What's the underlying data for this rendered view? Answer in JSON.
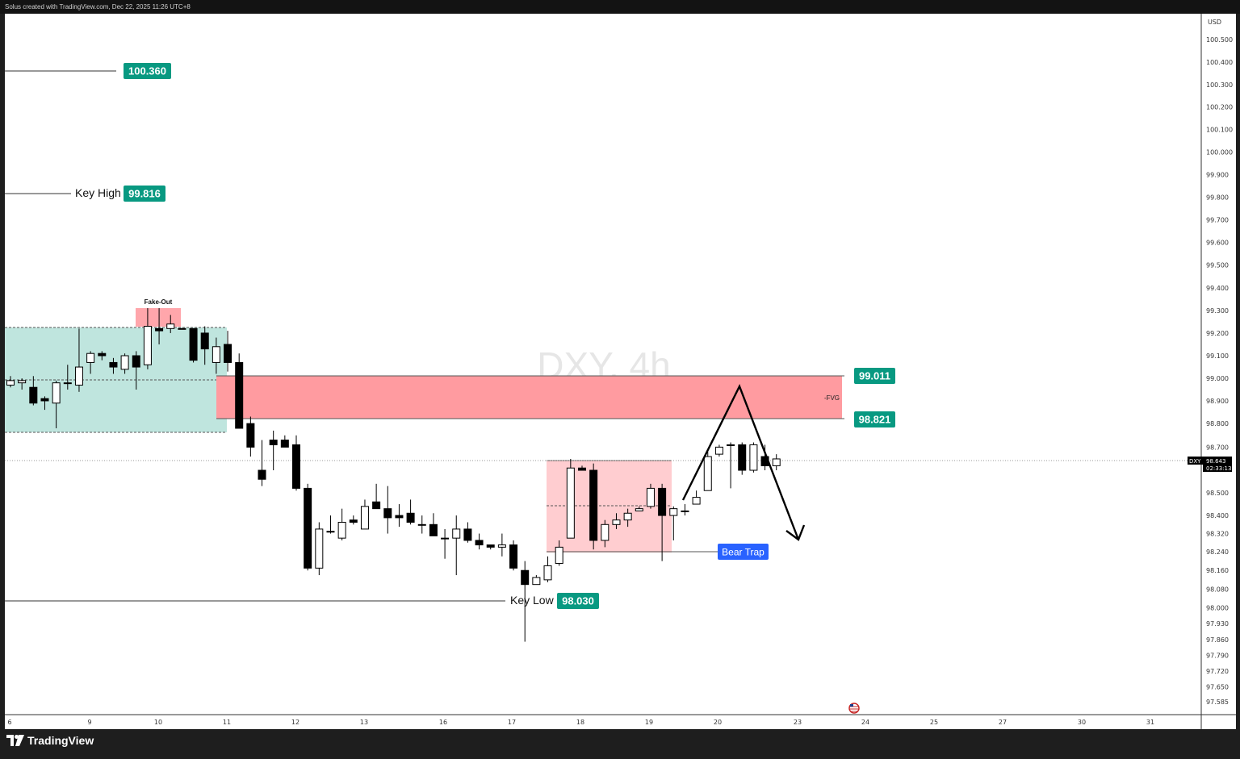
{
  "header": {
    "caption": "Solus created with TradingView.com, Dec 22, 2025 11:26 UTC+8"
  },
  "footer": {
    "brand": "TradingView",
    "logo_icon": "tradingview-logo-icon"
  },
  "chart": {
    "symbol": "DXY",
    "timeframe": "4h",
    "watermark": "DXY, 4h",
    "currency": "USD",
    "current_price": "98.643",
    "countdown": "02:33:13",
    "annotations": {
      "fake_out": "Fake-Out",
      "fvg": "-FVG",
      "key_high_text": "Key High",
      "key_low_text": "Key Low",
      "bear_trap": "Bear Trap"
    },
    "price_tags": {
      "high_100360": "100.360",
      "key_high": "99.816",
      "fvg_top": "99.011",
      "fvg_bottom": "98.821",
      "key_low": "98.030"
    },
    "colors": {
      "green_tag": "#089981",
      "blue_tag": "#2962ff",
      "fvg_fill": "#ff9ba0",
      "range_fill": "#bfe5de",
      "trap_fill": "#ffcdd0",
      "candle_down": "#000000",
      "candle_up": "#ffffff"
    }
  },
  "chart_data": {
    "type": "candlestick",
    "title": "DXY, 4h",
    "y_axis": {
      "unit": "USD",
      "ticks": [
        "100.500",
        "100.400",
        "100.300",
        "100.200",
        "100.100",
        "100.000",
        "99.900",
        "99.800",
        "99.700",
        "99.600",
        "99.500",
        "99.400",
        "99.300",
        "99.200",
        "99.100",
        "99.000",
        "98.900",
        "98.800",
        "98.700",
        "98.500",
        "98.400",
        "98.320",
        "98.240",
        "98.160",
        "98.080",
        "98.000",
        "97.930",
        "97.860",
        "97.790",
        "97.720",
        "97.650",
        "97.585"
      ]
    },
    "x_axis": {
      "ticks": [
        "6",
        "9",
        "10",
        "11",
        "12",
        "13",
        "16",
        "17",
        "18",
        "19",
        "20",
        "23",
        "24",
        "25",
        "27",
        "30",
        "31"
      ]
    },
    "levels": [
      {
        "name": "100.360",
        "price": 100.36
      },
      {
        "name": "Key High",
        "price": 99.816
      },
      {
        "name": "FVG top",
        "price": 99.011
      },
      {
        "name": "FVG bottom",
        "price": 98.821
      },
      {
        "name": "Key Low",
        "price": 98.03
      }
    ],
    "candles": [
      {
        "o": 98.97,
        "h": 99.01,
        "l": 98.96,
        "c": 98.99
      },
      {
        "o": 98.98,
        "h": 99.0,
        "l": 98.95,
        "c": 98.99
      },
      {
        "o": 98.96,
        "h": 99.01,
        "l": 98.88,
        "c": 98.89
      },
      {
        "o": 98.91,
        "h": 98.92,
        "l": 98.86,
        "c": 98.9
      },
      {
        "o": 98.89,
        "h": 98.99,
        "l": 98.78,
        "c": 98.98
      },
      {
        "o": 98.98,
        "h": 99.06,
        "l": 98.95,
        "c": 98.98
      },
      {
        "o": 98.97,
        "h": 99.22,
        "l": 98.94,
        "c": 99.05
      },
      {
        "o": 99.07,
        "h": 99.12,
        "l": 99.02,
        "c": 99.11
      },
      {
        "o": 99.11,
        "h": 99.12,
        "l": 99.08,
        "c": 99.1
      },
      {
        "o": 99.07,
        "h": 99.09,
        "l": 99.02,
        "c": 99.05
      },
      {
        "o": 99.04,
        "h": 99.11,
        "l": 99.02,
        "c": 99.1
      },
      {
        "o": 99.1,
        "h": 99.12,
        "l": 98.95,
        "c": 99.05
      },
      {
        "o": 99.06,
        "h": 99.31,
        "l": 99.04,
        "c": 99.23
      },
      {
        "o": 99.22,
        "h": 99.31,
        "l": 99.15,
        "c": 99.21
      },
      {
        "o": 99.22,
        "h": 99.28,
        "l": 99.2,
        "c": 99.24
      },
      {
        "o": 99.22,
        "h": 99.22,
        "l": 99.22,
        "c": 99.22
      },
      {
        "o": 99.22,
        "h": 99.22,
        "l": 99.07,
        "c": 99.08
      },
      {
        "o": 99.2,
        "h": 99.23,
        "l": 99.06,
        "c": 99.13
      },
      {
        "o": 99.07,
        "h": 99.18,
        "l": 99.02,
        "c": 99.14
      },
      {
        "o": 99.15,
        "h": 99.21,
        "l": 99.03,
        "c": 99.07
      },
      {
        "o": 99.07,
        "h": 99.11,
        "l": 98.78,
        "c": 98.78
      },
      {
        "o": 98.8,
        "h": 98.83,
        "l": 98.66,
        "c": 98.7
      },
      {
        "o": 98.6,
        "h": 98.73,
        "l": 98.53,
        "c": 98.56
      },
      {
        "o": 98.73,
        "h": 98.77,
        "l": 98.6,
        "c": 98.71
      },
      {
        "o": 98.73,
        "h": 98.75,
        "l": 98.71,
        "c": 98.7
      },
      {
        "o": 98.71,
        "h": 98.75,
        "l": 98.51,
        "c": 98.52
      },
      {
        "o": 98.52,
        "h": 98.54,
        "l": 98.16,
        "c": 98.17
      },
      {
        "o": 98.17,
        "h": 98.37,
        "l": 98.14,
        "c": 98.34
      },
      {
        "o": 98.33,
        "h": 98.4,
        "l": 98.32,
        "c": 98.33
      },
      {
        "o": 98.3,
        "h": 98.43,
        "l": 98.29,
        "c": 98.37
      },
      {
        "o": 98.38,
        "h": 98.4,
        "l": 98.36,
        "c": 98.37
      },
      {
        "o": 98.34,
        "h": 98.47,
        "l": 98.34,
        "c": 98.44
      },
      {
        "o": 98.46,
        "h": 98.54,
        "l": 98.44,
        "c": 98.43
      },
      {
        "o": 98.43,
        "h": 98.53,
        "l": 98.32,
        "c": 98.39
      },
      {
        "o": 98.4,
        "h": 98.45,
        "l": 98.35,
        "c": 98.39
      },
      {
        "o": 98.41,
        "h": 98.47,
        "l": 98.36,
        "c": 98.37
      },
      {
        "o": 98.36,
        "h": 98.4,
        "l": 98.32,
        "c": 98.36
      },
      {
        "o": 98.36,
        "h": 98.41,
        "l": 98.31,
        "c": 98.31
      },
      {
        "o": 98.3,
        "h": 98.34,
        "l": 98.21,
        "c": 98.3
      },
      {
        "o": 98.3,
        "h": 98.4,
        "l": 98.14,
        "c": 98.34
      },
      {
        "o": 98.34,
        "h": 98.37,
        "l": 98.28,
        "c": 98.29
      },
      {
        "o": 98.29,
        "h": 98.32,
        "l": 98.25,
        "c": 98.27
      },
      {
        "o": 98.27,
        "h": 98.27,
        "l": 98.25,
        "c": 98.26
      },
      {
        "o": 98.26,
        "h": 98.32,
        "l": 98.22,
        "c": 98.27
      },
      {
        "o": 98.27,
        "h": 98.29,
        "l": 98.16,
        "c": 98.17
      },
      {
        "o": 98.16,
        "h": 98.2,
        "l": 97.85,
        "c": 98.1
      },
      {
        "o": 98.1,
        "h": 98.14,
        "l": 98.1,
        "c": 98.13
      },
      {
        "o": 98.12,
        "h": 98.22,
        "l": 98.11,
        "c": 98.18
      },
      {
        "o": 98.19,
        "h": 98.29,
        "l": 98.18,
        "c": 98.26
      },
      {
        "o": 98.3,
        "h": 98.65,
        "l": 98.3,
        "c": 98.61
      },
      {
        "o": 98.61,
        "h": 98.62,
        "l": 98.6,
        "c": 98.6
      },
      {
        "o": 98.6,
        "h": 98.63,
        "l": 98.25,
        "c": 98.29
      },
      {
        "o": 98.29,
        "h": 98.38,
        "l": 98.26,
        "c": 98.36
      },
      {
        "o": 98.36,
        "h": 98.41,
        "l": 98.34,
        "c": 98.38
      },
      {
        "o": 98.38,
        "h": 98.43,
        "l": 98.35,
        "c": 98.41
      },
      {
        "o": 98.42,
        "h": 98.44,
        "l": 98.42,
        "c": 98.43
      },
      {
        "o": 98.44,
        "h": 98.54,
        "l": 98.43,
        "c": 98.52
      },
      {
        "o": 98.52,
        "h": 98.54,
        "l": 98.2,
        "c": 98.4
      },
      {
        "o": 98.4,
        "h": 98.44,
        "l": 98.29,
        "c": 98.43
      },
      {
        "o": 98.42,
        "h": 98.45,
        "l": 98.4,
        "c": 98.42
      },
      {
        "o": 98.45,
        "h": 98.51,
        "l": 98.45,
        "c": 98.48
      },
      {
        "o": 98.51,
        "h": 98.68,
        "l": 98.51,
        "c": 98.66
      },
      {
        "o": 98.67,
        "h": 98.71,
        "l": 98.66,
        "c": 98.7
      },
      {
        "o": 98.71,
        "h": 98.72,
        "l": 98.52,
        "c": 98.71
      },
      {
        "o": 98.71,
        "h": 98.72,
        "l": 98.58,
        "c": 98.6
      },
      {
        "o": 98.6,
        "h": 98.72,
        "l": 98.59,
        "c": 98.71
      },
      {
        "o": 98.66,
        "h": 98.71,
        "l": 98.6,
        "c": 98.62
      },
      {
        "o": 98.62,
        "h": 98.67,
        "l": 98.6,
        "c": 98.65
      }
    ]
  }
}
